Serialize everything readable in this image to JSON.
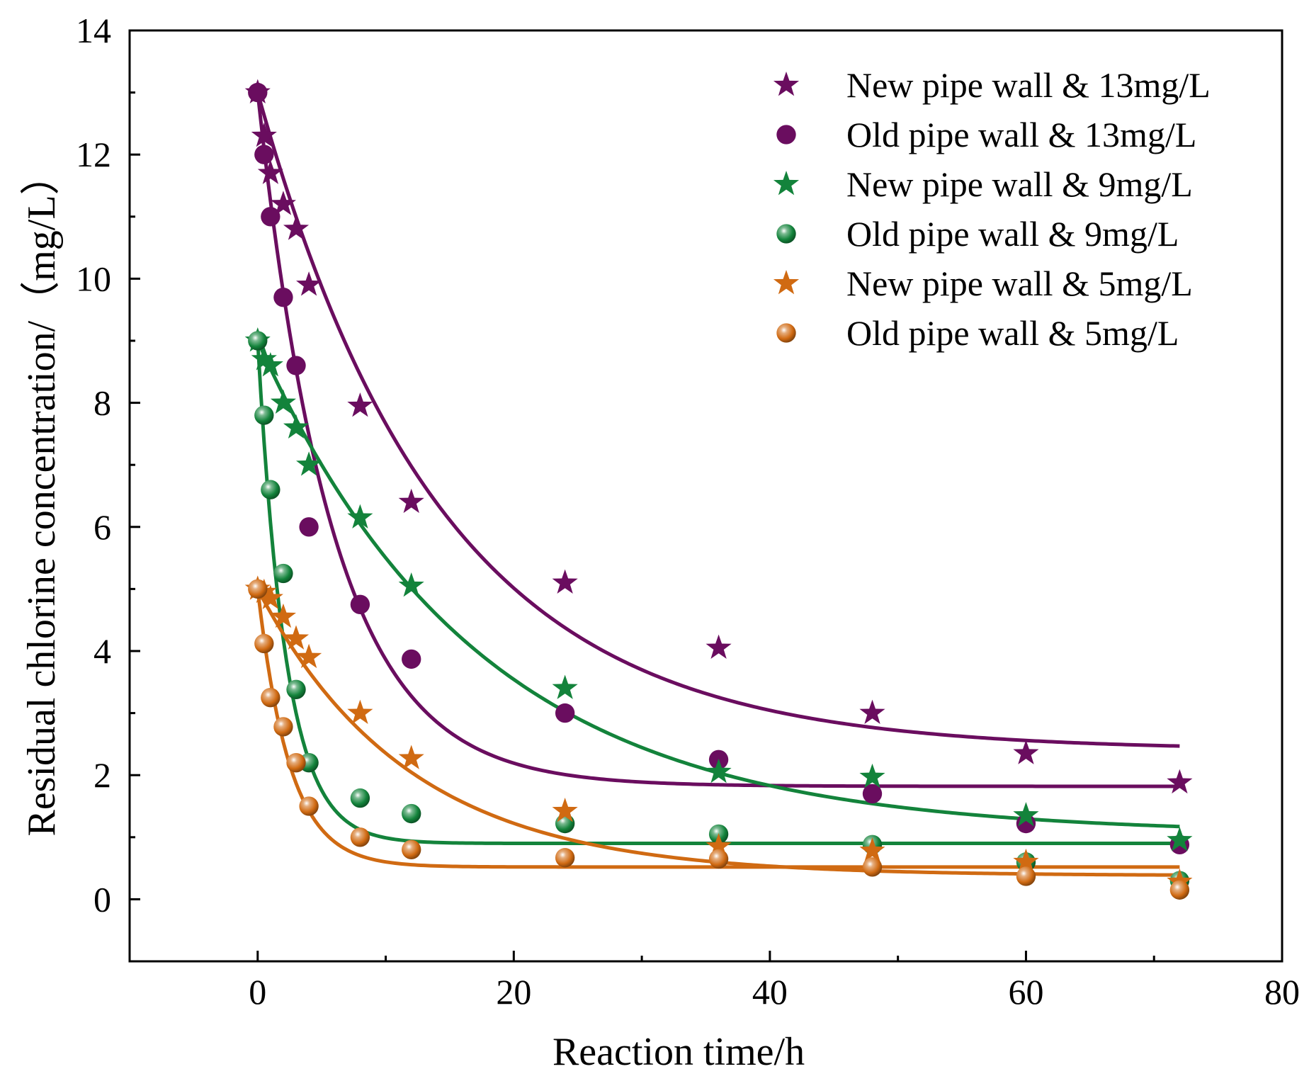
{
  "chart_data": {
    "type": "scatter",
    "title": "",
    "xlabel": "Reaction time/h",
    "ylabel": "Residual chlorine concentration/（mg/L）",
    "xlim": [
      -10,
      80
    ],
    "ylim": [
      -1,
      14
    ],
    "x_ticks": [
      0,
      20,
      40,
      60,
      80
    ],
    "y_ticks": [
      0,
      2,
      4,
      6,
      8,
      10,
      12,
      14
    ],
    "x_tick_labels": [
      "0",
      "20",
      "40",
      "60",
      "80"
    ],
    "y_tick_labels": [
      "0",
      "2",
      "4",
      "6",
      "8",
      "10",
      "12",
      "14"
    ],
    "grid": false,
    "legend_position": "top-right",
    "series": [
      {
        "name": "New pipe wall & 13mg/L",
        "marker": "star",
        "color": "#6a0d5f",
        "x": [
          0,
          0.5,
          1,
          2,
          3,
          4,
          8,
          12,
          24,
          36,
          48,
          60,
          72
        ],
        "y": [
          13.0,
          12.3,
          11.7,
          11.2,
          10.8,
          9.9,
          7.95,
          6.4,
          5.1,
          4.05,
          3.0,
          2.35,
          1.88
        ],
        "fit": {
          "model": "first-order decay",
          "c0": 13.0,
          "c_inf": 2.4,
          "k": 0.07
        }
      },
      {
        "name": "Old pipe wall & 13mg/L",
        "marker": "circle",
        "color": "#6a0d5f",
        "x": [
          0,
          0.5,
          1,
          2,
          3,
          4,
          8,
          12,
          24,
          36,
          48,
          60,
          72
        ],
        "y": [
          13.0,
          12.0,
          11.0,
          9.7,
          8.6,
          6.0,
          4.75,
          3.87,
          3.0,
          2.25,
          1.7,
          1.22,
          0.88
        ],
        "fit": {
          "model": "first-order decay",
          "c0": 13.0,
          "c_inf": 1.82,
          "k": 0.17
        }
      },
      {
        "name": "New pipe wall & 9mg/L",
        "marker": "star",
        "color": "#13833b",
        "x": [
          0,
          0.5,
          1,
          2,
          3,
          4,
          8,
          12,
          24,
          36,
          48,
          60,
          72
        ],
        "y": [
          9.0,
          8.7,
          8.6,
          8.0,
          7.6,
          7.0,
          6.15,
          5.05,
          3.4,
          2.05,
          1.97,
          1.35,
          0.95
        ],
        "fit": {
          "model": "first-order decay",
          "c0": 9.0,
          "c_inf": 1.05,
          "k": 0.058
        }
      },
      {
        "name": "Old pipe wall & 9mg/L",
        "marker": "ball",
        "color": "#13833b",
        "x": [
          0,
          0.5,
          1,
          2,
          3,
          4,
          8,
          12,
          24,
          36,
          48,
          60,
          72
        ],
        "y": [
          9.0,
          7.8,
          6.6,
          5.25,
          3.38,
          2.2,
          1.63,
          1.38,
          1.22,
          1.05,
          0.88,
          0.6,
          0.3
        ],
        "fit": {
          "model": "first-order decay",
          "c0": 9.0,
          "c_inf": 0.9,
          "k": 0.45
        }
      },
      {
        "name": "New pipe wall & 5mg/L",
        "marker": "star",
        "color": "#d06a12",
        "x": [
          0,
          0.5,
          1,
          2,
          3,
          4,
          8,
          12,
          24,
          36,
          48,
          60,
          72
        ],
        "y": [
          5.0,
          4.95,
          4.85,
          4.55,
          4.2,
          3.9,
          3.0,
          2.27,
          1.42,
          0.85,
          0.78,
          0.6,
          0.28
        ],
        "fit": {
          "model": "first-order decay",
          "c0": 5.0,
          "c_inf": 0.38,
          "k": 0.085
        }
      },
      {
        "name": "Old pipe wall & 5mg/L",
        "marker": "ball",
        "color": "#d06a12",
        "x": [
          0,
          0.5,
          1,
          2,
          3,
          4,
          8,
          12,
          24,
          36,
          48,
          60,
          72
        ],
        "y": [
          5.0,
          4.12,
          3.25,
          2.78,
          2.2,
          1.5,
          1.0,
          0.8,
          0.67,
          0.65,
          0.52,
          0.37,
          0.15
        ],
        "fit": {
          "model": "first-order decay",
          "c0": 5.0,
          "c_inf": 0.52,
          "k": 0.4
        }
      }
    ]
  }
}
